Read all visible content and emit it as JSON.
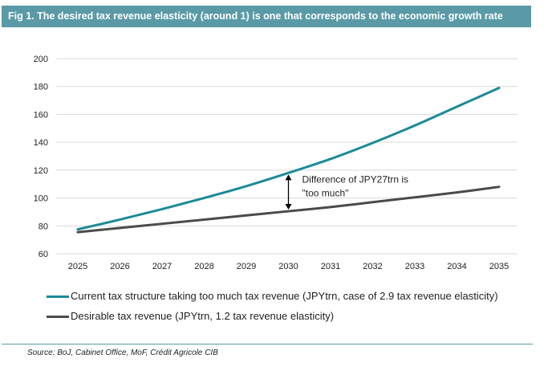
{
  "figure_title": "Fig 1. The desired tax revenue elasticity (around 1) is one that corresponds to the economic growth rate",
  "source": "Source: BoJ, Cabinet Office, MoF, Crédit Agricole CIB",
  "colors": {
    "header_bg": "#5a9aa6",
    "series_current": "#1b8a98",
    "series_desirable": "#4a4a4a",
    "grid": "#d9d9d9"
  },
  "chart_data": {
    "type": "line",
    "title": "",
    "xlabel": "",
    "ylabel": "",
    "x": [
      "2025",
      "2026",
      "2027",
      "2028",
      "2029",
      "2030",
      "2031",
      "2032",
      "2033",
      "2034",
      "2035"
    ],
    "ylim": [
      60,
      200
    ],
    "yticks": [
      60,
      80,
      100,
      120,
      140,
      160,
      180,
      200
    ],
    "grid": true,
    "legend_position": "bottom",
    "series": [
      {
        "name": "Current tax structure taking too much tax revenue (JPYtrn, case of 2.9 tax revenue elasticity)",
        "values": [
          77.5,
          84.5,
          92,
          100,
          108.5,
          118,
          128,
          139.5,
          152,
          165.5,
          179
        ],
        "color": "#1b8a98"
      },
      {
        "name": "Desirable tax revenue (JPYtrn, 1.2 tax revenue elasticity)",
        "values": [
          75.5,
          78.5,
          81.5,
          84.5,
          87.5,
          90.5,
          93.5,
          97,
          100.5,
          104,
          108
        ],
        "color": "#4a4a4a"
      }
    ],
    "annotation": {
      "text_line1": "Difference of JPY27trn is",
      "text_line2": "\"too much\"",
      "x": "2030",
      "from": 90.5,
      "to": 118
    }
  }
}
